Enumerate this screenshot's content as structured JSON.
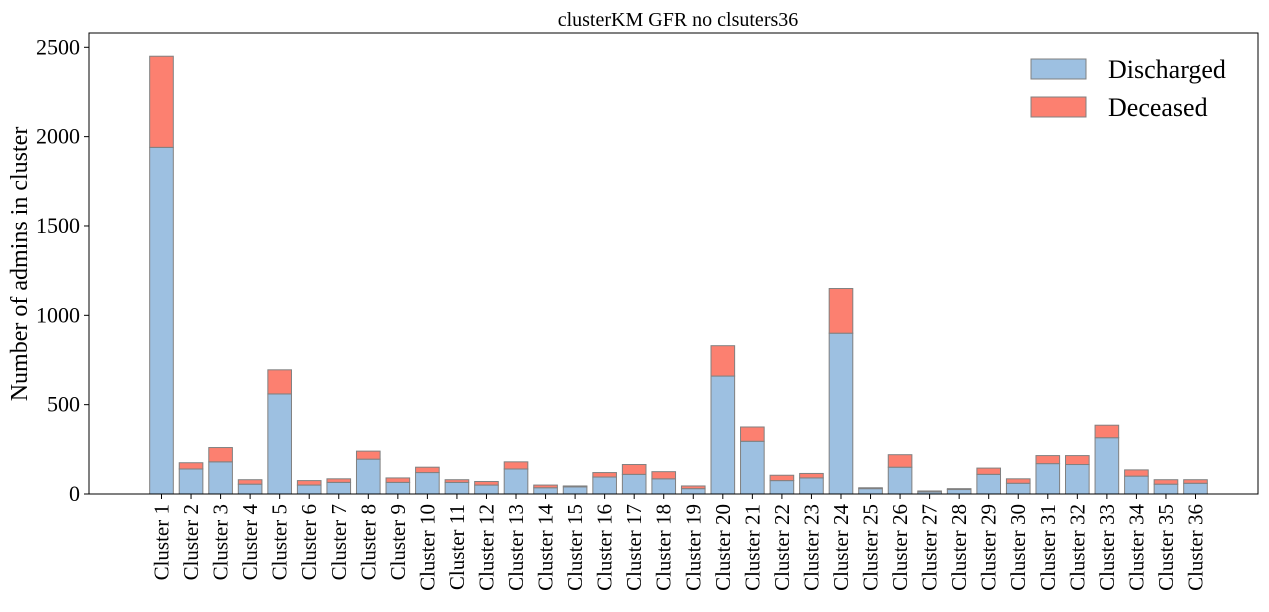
{
  "chart_data": {
    "type": "bar",
    "stacked": true,
    "title": "clusterKM GFR no clsuters36",
    "xlabel": "",
    "ylabel": "Number of admins in cluster",
    "ylim": [
      0,
      2580
    ],
    "yticks": [
      0,
      500,
      1000,
      1500,
      2000,
      2500
    ],
    "legend_position": "top-right",
    "grid": false,
    "categories": [
      "Cluster 1",
      "Cluster 2",
      "Cluster 3",
      "Cluster 4",
      "Cluster 5",
      "Cluster 6",
      "Cluster 7",
      "Cluster 8",
      "Cluster 9",
      "Cluster 10",
      "Cluster 11",
      "Cluster 12",
      "Cluster 13",
      "Cluster 14",
      "Cluster 15",
      "Cluster 16",
      "Cluster 17",
      "Cluster 18",
      "Cluster 19",
      "Cluster 20",
      "Cluster 21",
      "Cluster 22",
      "Cluster 23",
      "Cluster 24",
      "Cluster 25",
      "Cluster 26",
      "Cluster 27",
      "Cluster 28",
      "Cluster 29",
      "Cluster 30",
      "Cluster 31",
      "Cluster 32",
      "Cluster 33",
      "Cluster 34",
      "Cluster 35",
      "Cluster 36"
    ],
    "series": [
      {
        "name": "Discharged",
        "color": "#9dc0e1",
        "values": [
          1940,
          140,
          180,
          55,
          560,
          50,
          65,
          195,
          65,
          120,
          65,
          50,
          140,
          35,
          40,
          95,
          110,
          85,
          30,
          660,
          295,
          75,
          90,
          900,
          30,
          150,
          12,
          25,
          110,
          60,
          170,
          165,
          315,
          100,
          55,
          60
        ]
      },
      {
        "name": "Deceased",
        "color": "#fc8070",
        "values": [
          510,
          35,
          80,
          25,
          135,
          25,
          20,
          45,
          25,
          30,
          15,
          20,
          40,
          15,
          5,
          25,
          55,
          40,
          15,
          170,
          80,
          30,
          25,
          250,
          5,
          70,
          5,
          5,
          35,
          25,
          45,
          50,
          70,
          35,
          25,
          20
        ]
      }
    ],
    "edge_color": "#808080"
  }
}
